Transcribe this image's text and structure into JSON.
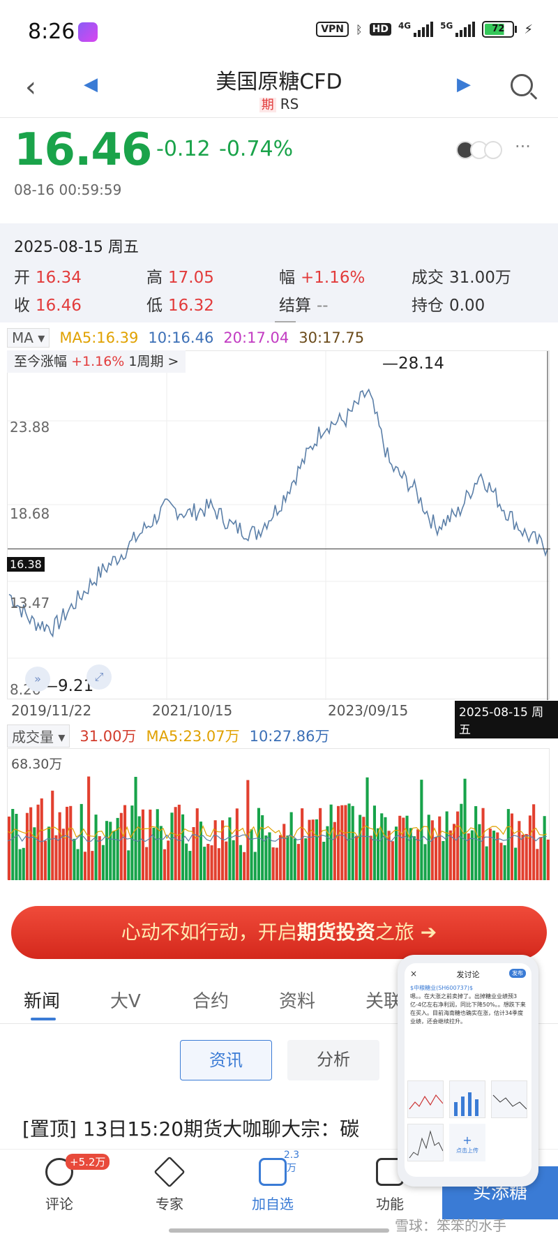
{
  "status_bar": {
    "time": "8:26",
    "vpn": "VPN",
    "hd": "HD",
    "net1": "4G",
    "net2": "5G",
    "battery": "72"
  },
  "header": {
    "title": "美国原糖CFD",
    "tag": "期",
    "code": "RS"
  },
  "quote": {
    "price": "16.46",
    "change": "-0.12",
    "change_pct": "-0.74%",
    "time": "08-16 00:59:59"
  },
  "info_card": {
    "date": "2025-08-15 周五",
    "open_label": "开",
    "open": "16.34",
    "high_label": "高",
    "high": "17.05",
    "amp_label": "幅",
    "amp": "+1.16%",
    "volume_label": "成交",
    "volume": "31.00万",
    "close_label": "收",
    "close": "16.46",
    "low_label": "低",
    "low": "16.32",
    "settle_label": "结算",
    "settle": "--",
    "oi_label": "持仓",
    "oi": "0.00"
  },
  "ma_legend": {
    "select": "MA",
    "ma5": "MA5:16.39",
    "ma10": "10:16.46",
    "ma20": "20:17.04",
    "ma30": "30:17.75"
  },
  "chart": {
    "since_label": "至今涨幅",
    "since_value": "+1.16%",
    "period": "1周期 >",
    "y_labels": [
      "23.88",
      "18.68",
      "13.47",
      "8.26"
    ],
    "current_label": "16.38",
    "max_label": "—28.14",
    "min_label": "—9.21",
    "x_labels": [
      "2019/11/22",
      "2021/10/15",
      "2023/09/15"
    ],
    "cursor_date": "2025-08-15 周五"
  },
  "chart_data": {
    "type": "line",
    "x": [
      "2019/11/22",
      "2020/03",
      "2020/06",
      "2020/09",
      "2020/12",
      "2021/03",
      "2021/06",
      "2021/10/15",
      "2022/01",
      "2022/04",
      "2022/07",
      "2022/10",
      "2023/01",
      "2023/04",
      "2023/07",
      "2023/09/15",
      "2023/11",
      "2024/01",
      "2024/04",
      "2024/07",
      "2024/10",
      "2024/12",
      "2025/03",
      "2025/06",
      "2025/08/15"
    ],
    "values": [
      13.0,
      11.0,
      10.5,
      12.5,
      14.5,
      16.0,
      17.8,
      19.5,
      19.0,
      19.5,
      18.0,
      17.5,
      19.5,
      22.5,
      25.5,
      26.0,
      28.1,
      22.5,
      21.0,
      18.0,
      19.0,
      22.0,
      19.5,
      17.5,
      16.4
    ],
    "ylim": [
      8.26,
      29.0
    ],
    "max": 28.14,
    "min": 9.21,
    "current": 16.38
  },
  "volume": {
    "select": "成交量",
    "vol": "31.00万",
    "ma5": "MA5:23.07万",
    "ma10": "10:27.86万",
    "max_label": "68.30万"
  },
  "banner": {
    "text1": "心动不如行动，开启",
    "bold": "期货投资",
    "text2": "之旅 ➔"
  },
  "tabs": [
    "新闻",
    "大V",
    "合约",
    "资料",
    "关联"
  ],
  "sub_tabs": [
    "资讯",
    "分析"
  ],
  "news": {
    "title": "[置顶] 13日15:20期货大咖聊大宗：碳"
  },
  "bottom_nav": {
    "comment": "评论",
    "comment_badge": "+5.2万",
    "expert": "专家",
    "add_watch": "加自选",
    "add_count": "2.3万",
    "function": "功能",
    "add_button": "买添糖"
  },
  "popup": {
    "close": "×",
    "title": "发讨论",
    "publish": "发布",
    "stock": "$中粮糖业(SH600737)$",
    "body": "嗯。。在大涨之前卖掉了。出掉糖业业绩预3亿-4亿左右净利润，同比下降50%。。想跌下来在买入。目前海南糖也确实在涨，估计34季度业绩，还会继续拉升。",
    "upload": "点击上传"
  },
  "watermark": "雪球：笨笨的水手"
}
